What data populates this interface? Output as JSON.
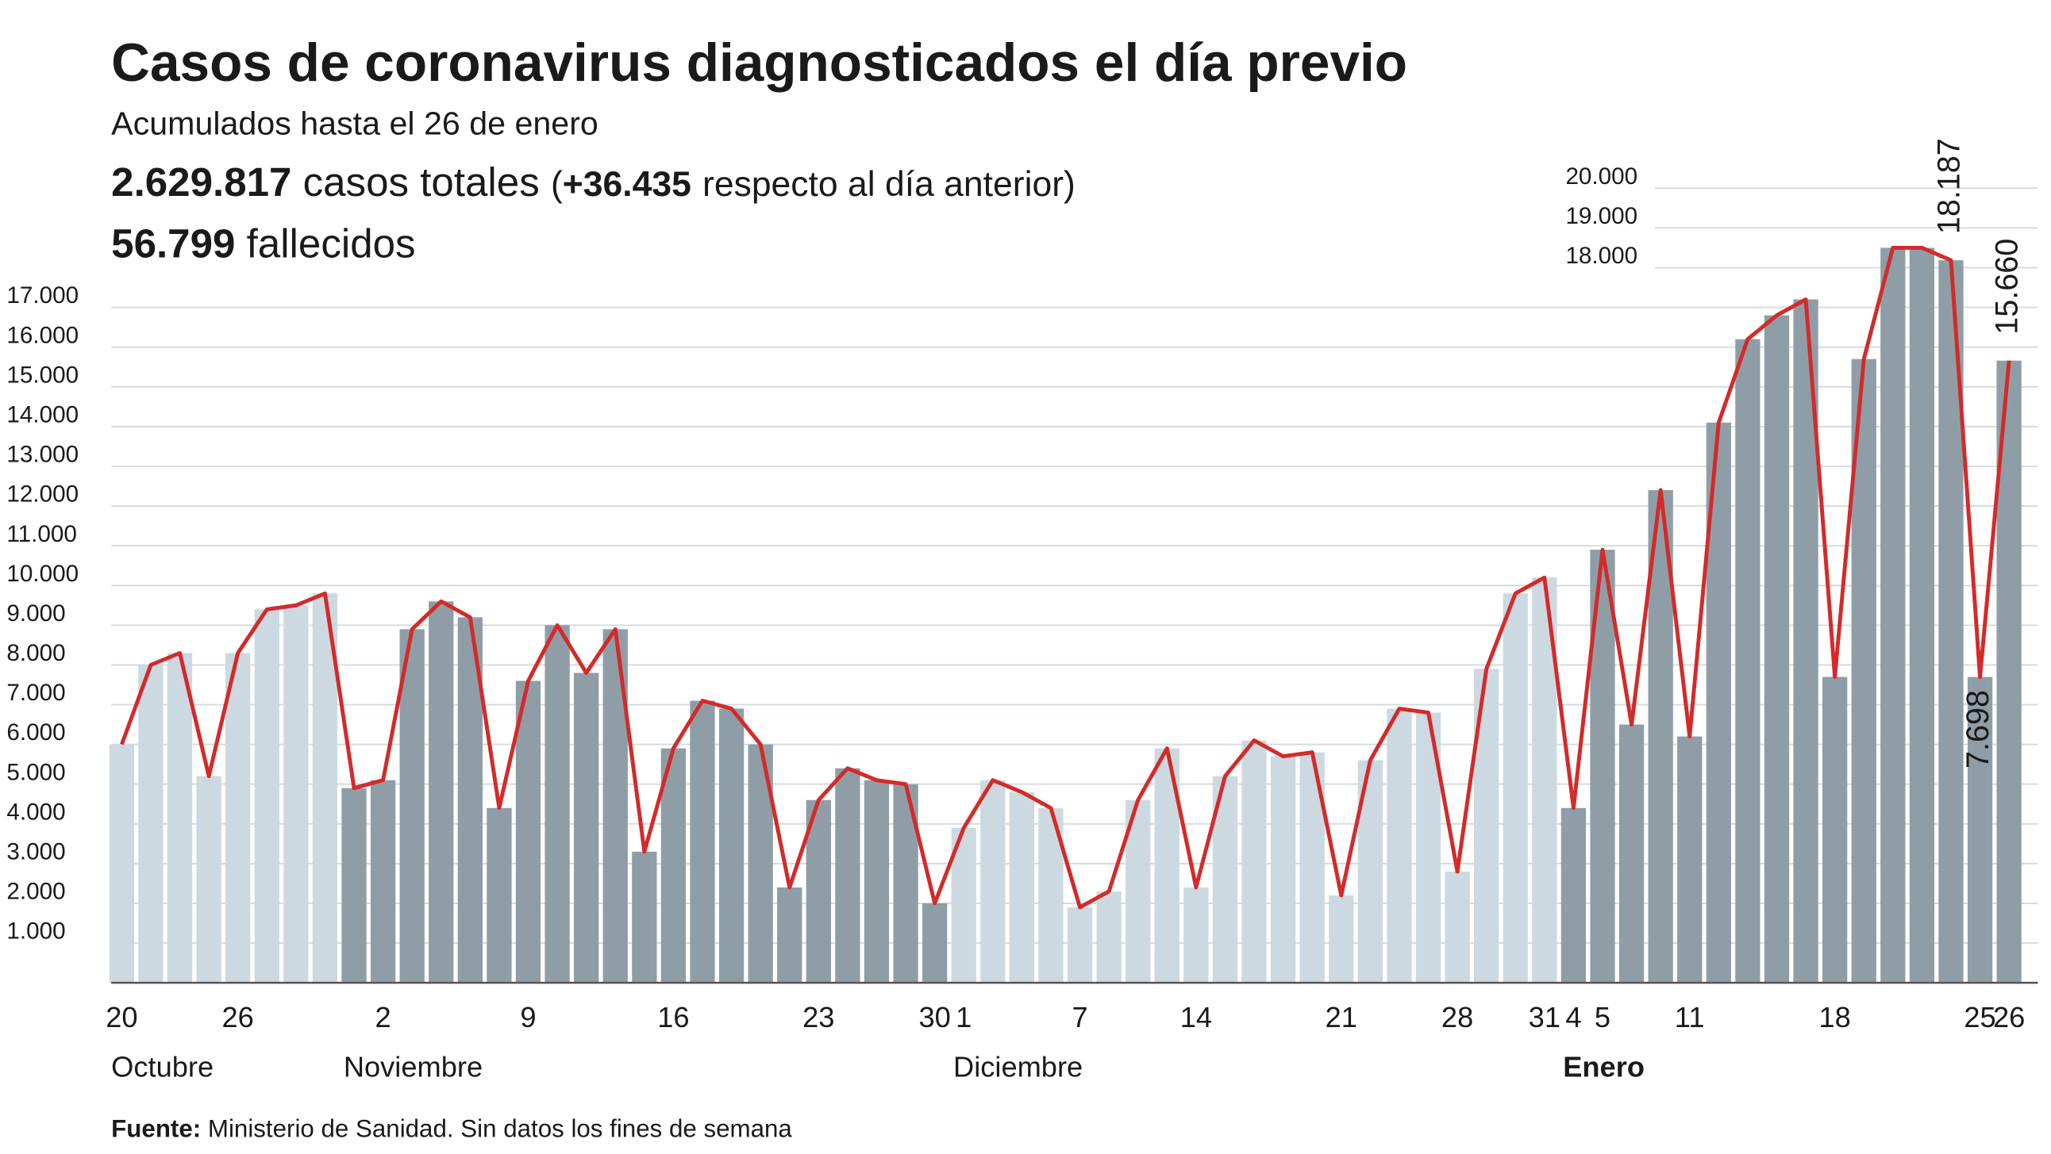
{
  "chart_data": {
    "type": "bar",
    "title": "Casos de coronavirus diagnosticados el día previo",
    "subtitle": "Acumulados hasta el 26 de enero",
    "totals": {
      "cases": "2.629.817",
      "cases_text": "casos totales",
      "change": "+36.435",
      "change_text": "respecto al día anterior",
      "deaths": "56.799",
      "deaths_text": "fallecidos"
    },
    "source_label": "Fuente:",
    "source": "Ministerio de Sanidad. Sin datos los fines de semana",
    "line_color": "#d42a2a",
    "ylim": [
      0,
      20000
    ],
    "yticks": [
      {
        "value": 1000,
        "label": "1.000"
      },
      {
        "value": 2000,
        "label": "2.000"
      },
      {
        "value": 3000,
        "label": "3.000"
      },
      {
        "value": 4000,
        "label": "4.000"
      },
      {
        "value": 5000,
        "label": "5.000"
      },
      {
        "value": 6000,
        "label": "6.000"
      },
      {
        "value": 7000,
        "label": "7.000"
      },
      {
        "value": 8000,
        "label": "8.000"
      },
      {
        "value": 9000,
        "label": "9.000"
      },
      {
        "value": 10000,
        "label": "10.000"
      },
      {
        "value": 11000,
        "label": "11.000"
      },
      {
        "value": 12000,
        "label": "12.000"
      },
      {
        "value": 13000,
        "label": "13.000"
      },
      {
        "value": 14000,
        "label": "14.000"
      },
      {
        "value": 15000,
        "label": "15.000"
      },
      {
        "value": 16000,
        "label": "16.000"
      },
      {
        "value": 17000,
        "label": "17.000"
      }
    ],
    "yticks_right": [
      {
        "value": 18000,
        "label": "18.000"
      },
      {
        "value": 19000,
        "label": "19.000"
      },
      {
        "value": 20000,
        "label": "20.000"
      }
    ],
    "grid": true,
    "groups": [
      {
        "name": "Octubre",
        "color": "#cdd9e0",
        "bold": false,
        "categories": [
          "20",
          null,
          null,
          null,
          "26",
          null,
          null,
          null
        ],
        "values": [
          6000,
          8000,
          8300,
          5200,
          8300,
          9400,
          9500,
          9800
        ]
      },
      {
        "name": "Noviembre",
        "color": "#8f9ea6",
        "bold": false,
        "categories": [
          null,
          "2",
          null,
          null,
          null,
          null,
          "9",
          null,
          null,
          null,
          null,
          "16",
          null,
          null,
          null,
          null,
          "23",
          null,
          null,
          null,
          "30"
        ],
        "values": [
          4900,
          5100,
          8900,
          9600,
          9200,
          4400,
          7600,
          9000,
          7800,
          8900,
          3300,
          5900,
          7100,
          6900,
          6000,
          2400,
          4600,
          5400,
          5100,
          5000,
          2000
        ]
      },
      {
        "name": "Diciembre",
        "color": "#cdd9e0",
        "bold": false,
        "categories": [
          "1",
          null,
          null,
          null,
          "7",
          null,
          null,
          null,
          "14",
          null,
          null,
          null,
          null,
          "21",
          null,
          null,
          null,
          "28",
          null,
          null,
          "31"
        ],
        "values": [
          3900,
          5100,
          4800,
          4400,
          1900,
          2300,
          4600,
          5900,
          2400,
          5200,
          6100,
          5700,
          5800,
          2200,
          5600,
          6900,
          6800,
          2800,
          7900,
          9800,
          10200
        ]
      },
      {
        "name": "Enero",
        "color": "#8f9ea6",
        "bold": true,
        "categories": [
          "4",
          "5",
          null,
          null,
          "11",
          null,
          null,
          null,
          null,
          "18",
          null,
          null,
          null,
          null,
          "25",
          "26"
        ],
        "values": [
          4400,
          10900,
          6500,
          12400,
          6200,
          14100,
          16200,
          16800,
          17200,
          7700,
          15700,
          18500,
          18500,
          18187,
          7698,
          15660
        ],
        "value_labels": [
          null,
          null,
          null,
          null,
          null,
          null,
          null,
          null,
          null,
          null,
          null,
          null,
          null,
          "18.187",
          "7.698",
          "15.660"
        ]
      }
    ]
  }
}
